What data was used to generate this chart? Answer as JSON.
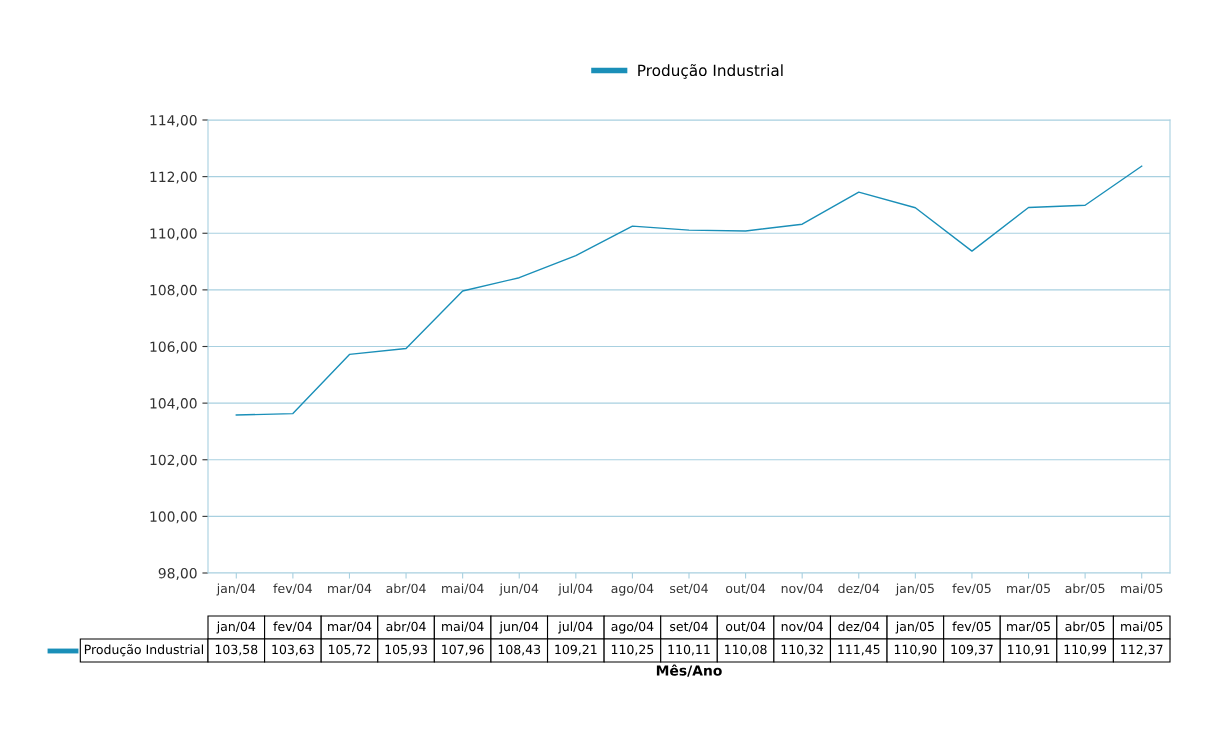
{
  "chart_data": {
    "type": "line",
    "xlabel": "Mês/Ano",
    "categories": [
      "jan/04",
      "fev/04",
      "mar/04",
      "abr/04",
      "mai/04",
      "jun/04",
      "jul/04",
      "ago/04",
      "set/04",
      "out/04",
      "nov/04",
      "dez/04",
      "jan/05",
      "fev/05",
      "mar/05",
      "abr/05",
      "mai/05"
    ],
    "series": [
      {
        "name": "Produção Industrial",
        "color": "#1a8fb8",
        "values": [
          103.58,
          103.63,
          105.72,
          105.93,
          107.96,
          108.43,
          109.21,
          110.25,
          110.11,
          110.08,
          110.32,
          111.45,
          110.9,
          109.37,
          110.91,
          110.99,
          112.37
        ],
        "value_labels": [
          "103,58",
          "103,63",
          "105,72",
          "105,93",
          "107,96",
          "108,43",
          "109,21",
          "110,25",
          "110,11",
          "110,08",
          "110,32",
          "111,45",
          "110,90",
          "109,37",
          "110,91",
          "110,99",
          "112,37"
        ]
      }
    ],
    "ylim": [
      98,
      114
    ],
    "yticks": [
      {
        "value": 98,
        "label": "98,00"
      },
      {
        "value": 100,
        "label": "100,00"
      },
      {
        "value": 102,
        "label": "102,00"
      },
      {
        "value": 104,
        "label": "104,00"
      },
      {
        "value": 106,
        "label": "106,00"
      },
      {
        "value": 108,
        "label": "108,00"
      },
      {
        "value": 110,
        "label": "110,00"
      },
      {
        "value": 112,
        "label": "112,00"
      },
      {
        "value": 114,
        "label": "114,00"
      }
    ],
    "grid": "y",
    "legend": "top",
    "marker": "none",
    "line_style": "solid"
  }
}
